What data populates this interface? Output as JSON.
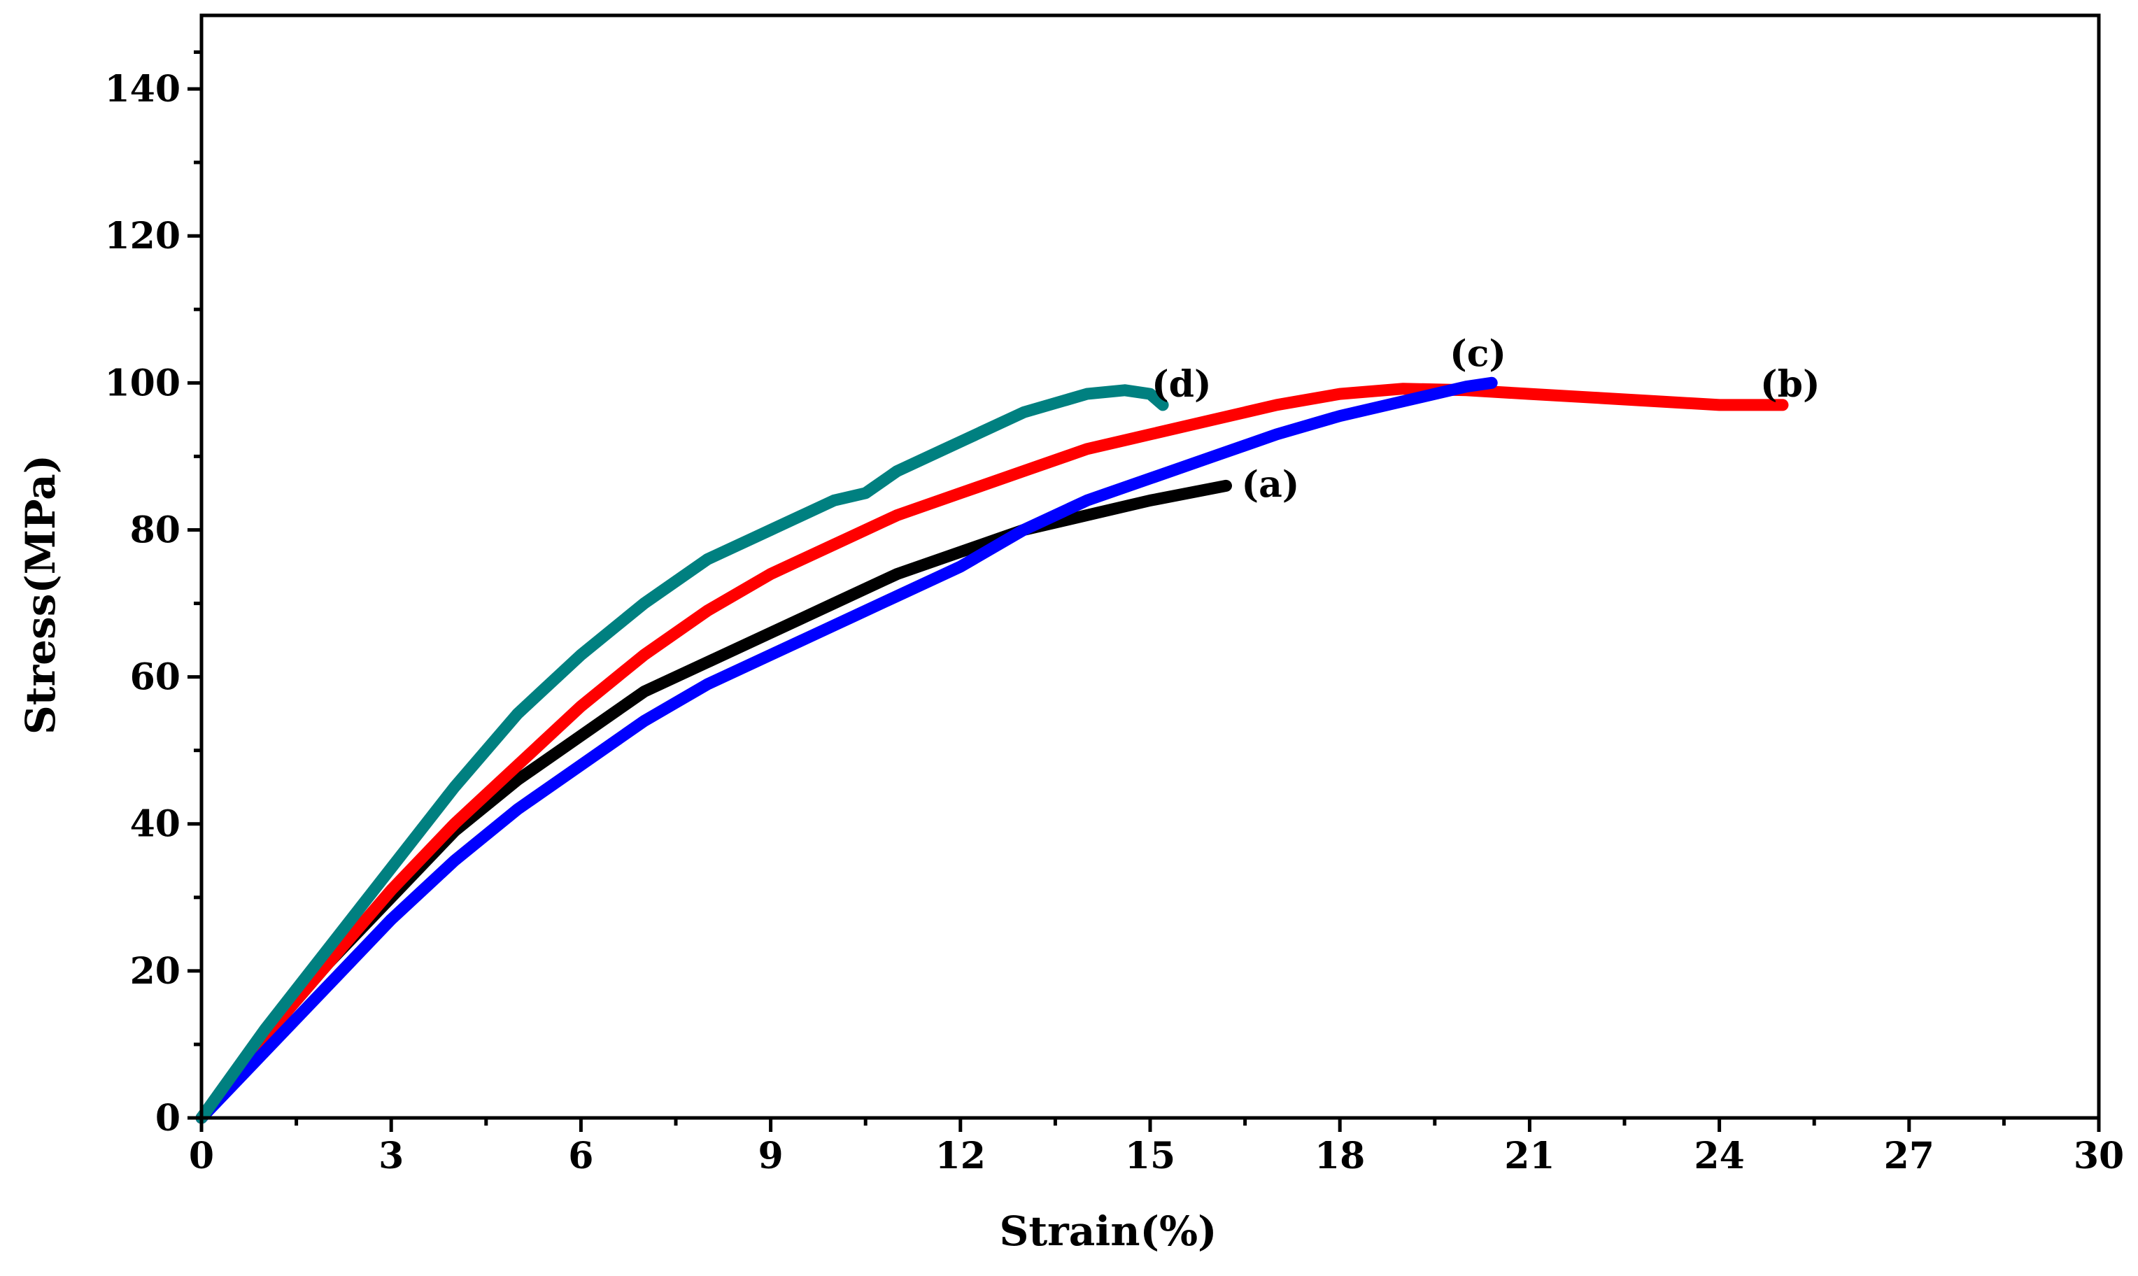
{
  "chart_data": {
    "type": "line",
    "title": "",
    "xlabel": "Strain(%)",
    "ylabel": "Stress(MPa)",
    "xlim": [
      0,
      30
    ],
    "ylim": [
      0,
      150
    ],
    "xticks": [
      0,
      3,
      6,
      9,
      12,
      15,
      18,
      21,
      24,
      27,
      30
    ],
    "yticks": [
      0,
      20,
      40,
      60,
      80,
      100,
      120,
      140
    ],
    "xtick_labels": [
      "0",
      "3",
      "6",
      "9",
      "12",
      "15",
      "18",
      "21",
      "24",
      "27",
      "30"
    ],
    "ytick_labels": [
      "0",
      "20",
      "40",
      "60",
      "80",
      "100",
      "120",
      "140"
    ],
    "grid": false,
    "legend": "none",
    "series": [
      {
        "name": "(a)",
        "label": "(a)",
        "color": "#000000",
        "x": [
          0,
          1,
          2,
          3,
          4,
          5,
          6,
          7,
          8,
          9,
          10,
          11,
          12,
          13,
          14,
          15,
          16.2
        ],
        "y": [
          0,
          11,
          21,
          30,
          39,
          46,
          52,
          58,
          62,
          66,
          70,
          74,
          77,
          80,
          82,
          84,
          86
        ]
      },
      {
        "name": "(b)",
        "label": "(b)",
        "color": "#ff0000",
        "x": [
          0,
          1,
          2,
          3,
          4,
          5,
          6,
          7,
          8,
          9,
          10,
          11,
          12,
          13,
          14,
          15,
          16,
          17,
          18,
          19,
          20,
          21,
          22,
          23,
          24,
          25
        ],
        "y": [
          0,
          11,
          21,
          31,
          40,
          48,
          56,
          63,
          69,
          74,
          78,
          82,
          85,
          88,
          91,
          93,
          95,
          97,
          98.5,
          99.2,
          99,
          98.5,
          98,
          97.5,
          97,
          97
        ]
      },
      {
        "name": "(c)",
        "label": "(c)",
        "color": "#0000ff",
        "x": [
          0,
          1,
          2,
          3,
          4,
          5,
          6,
          7,
          8,
          9,
          10,
          11,
          12,
          13,
          14,
          15,
          16,
          17,
          18,
          19,
          20,
          20.4
        ],
        "y": [
          0,
          9,
          18,
          27,
          35,
          42,
          48,
          54,
          59,
          63,
          67,
          71,
          75,
          80,
          84,
          87,
          90,
          93,
          95.5,
          97.5,
          99.5,
          100
        ]
      },
      {
        "name": "(d)",
        "label": "(d)",
        "color": "#008080",
        "x": [
          0,
          1,
          2,
          3,
          4,
          5,
          6,
          7,
          8,
          9,
          10,
          10.5,
          11,
          12,
          13,
          14,
          14.6,
          15,
          15.2
        ],
        "y": [
          0,
          12,
          23,
          34,
          45,
          55,
          63,
          70,
          76,
          80,
          84,
          85,
          88,
          92,
          96,
          98.5,
          99,
          98.5,
          97
        ]
      }
    ]
  }
}
